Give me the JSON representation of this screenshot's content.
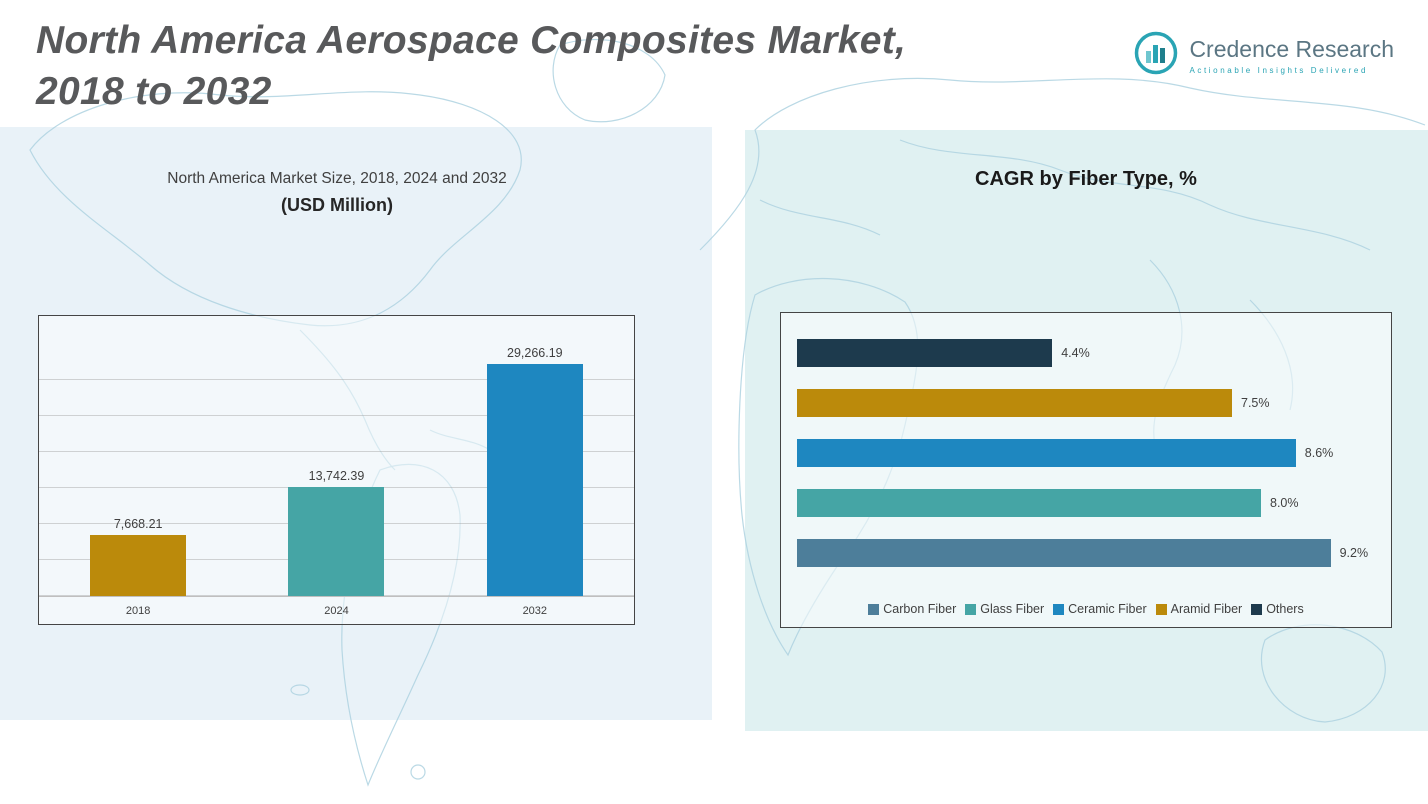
{
  "header": {
    "title_line1": "North America Aerospace Composites Market,",
    "title_line2": "2018 to 2032"
  },
  "logo": {
    "name": "Credence Research",
    "tagline": "Actionable Insights Delivered"
  },
  "colors": {
    "gold": "#bb8a0b",
    "teal": "#45a5a5",
    "blue": "#1e87c0",
    "steel_blue": "#4d7e9a",
    "dark_navy": "#1d3a4d",
    "panel_left_bg": "#e9f2f8",
    "panel_right_bg": "#e0f1f2",
    "title_gray": "#58595b",
    "logo_teal": "#2aa4b4"
  },
  "chart_data": [
    {
      "type": "bar",
      "title": "North America Market Size, 2018, 2024 and 2032",
      "subtitle": "(USD Million)",
      "categories": [
        "2018",
        "2024",
        "2032"
      ],
      "values": [
        7668.21,
        13742.39,
        29266.19
      ],
      "value_labels": [
        "7,668.21",
        "13,742.39",
        "29,266.19"
      ],
      "colors": [
        "#bb8a0b",
        "#45a5a5",
        "#1e87c0"
      ],
      "xlabel": "",
      "ylabel": "",
      "ylim": [
        0,
        31500
      ],
      "grid": true,
      "legend_position": "none"
    },
    {
      "type": "bar",
      "orientation": "horizontal",
      "title": "CAGR by Fiber Type, %",
      "categories": [
        "Others",
        "Aramid Fiber",
        "Ceramic Fiber",
        "Glass Fiber",
        "Carbon Fiber"
      ],
      "values": [
        4.4,
        7.5,
        8.6,
        8.0,
        9.2
      ],
      "value_labels": [
        "4.4%",
        "7.5%",
        "8.6%",
        "8.0%",
        "9.2%"
      ],
      "colors": [
        "#1d3a4d",
        "#bb8a0b",
        "#1e87c0",
        "#45a5a5",
        "#4d7e9a"
      ],
      "xlabel": "",
      "ylabel": "",
      "xlim": [
        0,
        10
      ],
      "grid": false,
      "legend_position": "bottom",
      "legend": [
        {
          "label": "Carbon Fiber",
          "color": "#4d7e9a"
        },
        {
          "label": "Glass Fiber",
          "color": "#45a5a5"
        },
        {
          "label": "Ceramic Fiber",
          "color": "#1e87c0"
        },
        {
          "label": "Aramid Fiber",
          "color": "#bb8a0b"
        },
        {
          "label": "Others",
          "color": "#1d3a4d"
        }
      ]
    }
  ]
}
